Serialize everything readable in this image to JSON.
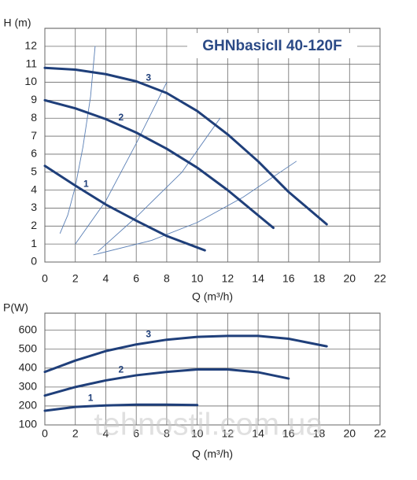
{
  "chart_data": [
    {
      "type": "line",
      "title": "GHNbasicII 40-120F",
      "xlabel": "Q (m³/h)",
      "ylabel": "H (m)",
      "xlim": [
        0,
        22
      ],
      "xticks": [
        0,
        2,
        4,
        6,
        8,
        10,
        12,
        14,
        16,
        18,
        20,
        22
      ],
      "ylim": [
        0,
        13
      ],
      "yticks": [
        0,
        1,
        2,
        3,
        4,
        5,
        6,
        7,
        8,
        9,
        10,
        11,
        12
      ],
      "grid": true,
      "series": [
        {
          "name": "1",
          "color": "#1f3f7a",
          "x": [
            0,
            2,
            4,
            6,
            8,
            10.5
          ],
          "values": [
            5.35,
            4.25,
            3.2,
            2.3,
            1.45,
            0.65
          ]
        },
        {
          "name": "2",
          "color": "#1f3f7a",
          "x": [
            0,
            2,
            4,
            6,
            8,
            10,
            12,
            14,
            15
          ],
          "values": [
            9,
            8.55,
            7.95,
            7.2,
            6.3,
            5.25,
            4,
            2.6,
            1.9
          ]
        },
        {
          "name": "3",
          "color": "#1f3f7a",
          "x": [
            0,
            2,
            4,
            6,
            8,
            10,
            12,
            14,
            16,
            18.5
          ],
          "values": [
            10.8,
            10.7,
            10.45,
            10.05,
            9.4,
            8.4,
            7.1,
            5.6,
            3.9,
            2.1
          ]
        }
      ],
      "system_curves": [
        {
          "color": "#5a7fb5",
          "x": [
            1,
            1.5,
            2,
            2.5,
            3,
            3.3
          ],
          "values": [
            1.6,
            2.6,
            4.2,
            6.4,
            9.2,
            12
          ]
        },
        {
          "color": "#5a7fb5",
          "x": [
            2,
            4,
            6,
            8
          ],
          "values": [
            1,
            3.4,
            6.6,
            10
          ]
        },
        {
          "color": "#5a7fb5",
          "x": [
            3.5,
            6,
            9,
            11.5
          ],
          "values": [
            0.6,
            2.5,
            5,
            8
          ]
        },
        {
          "color": "#5a7fb5",
          "x": [
            3.2,
            7,
            10,
            13,
            16.5
          ],
          "values": [
            0.4,
            1.2,
            2.2,
            3.6,
            5.6
          ]
        }
      ]
    },
    {
      "type": "line",
      "xlabel": "Q (m³/h)",
      "ylabel": "P(W)",
      "xlim": [
        0,
        22
      ],
      "xticks": [
        0,
        2,
        4,
        6,
        8,
        10,
        12,
        14,
        16,
        18,
        20,
        22
      ],
      "ylim": [
        100,
        690
      ],
      "yticks": [
        100,
        200,
        300,
        400,
        500,
        600
      ],
      "grid": true,
      "series": [
        {
          "name": "1",
          "color": "#1f3f7a",
          "x": [
            0,
            2,
            4,
            6,
            8,
            10
          ],
          "values": [
            175,
            195,
            203,
            207,
            207,
            205
          ]
        },
        {
          "name": "2",
          "color": "#1f3f7a",
          "x": [
            0,
            2,
            4,
            6,
            8,
            10,
            12,
            14,
            16
          ],
          "values": [
            255,
            300,
            335,
            362,
            380,
            393,
            393,
            378,
            345
          ]
        },
        {
          "name": "3",
          "color": "#1f3f7a",
          "x": [
            0,
            2,
            4,
            6,
            8,
            10,
            12,
            14,
            16,
            18.5
          ],
          "values": [
            380,
            440,
            490,
            525,
            550,
            565,
            570,
            570,
            555,
            515
          ]
        }
      ]
    }
  ],
  "watermark": "tehnostil.com.ua"
}
